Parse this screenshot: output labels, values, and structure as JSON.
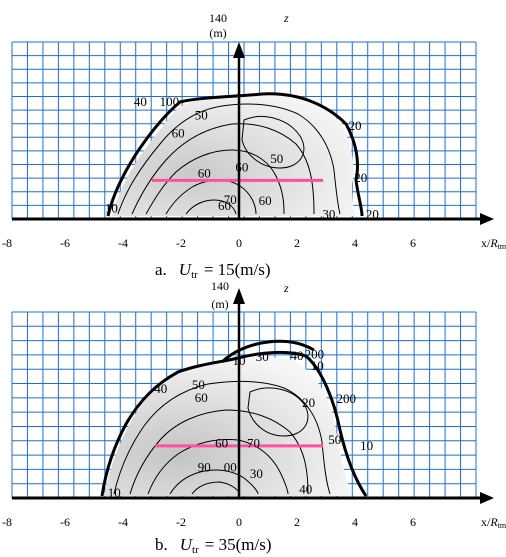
{
  "colors": {
    "grid": "#1e6fd9",
    "axis": "#000000",
    "contour": "#000000",
    "marker_line": "#ff4fa0",
    "shade_light": "#f4f4f4",
    "shade_dark": "#c9c9c9"
  },
  "chart_data": [
    {
      "type": "contour",
      "caption": {
        "prefix": "a.",
        "symbol": "U",
        "sub": "tr",
        "value": "= 15(m/s)"
      },
      "x_ticks": [
        "-8",
        "-6",
        "-4",
        "-2",
        "0",
        "2",
        "4",
        "6"
      ],
      "x_label": {
        "main": "x/",
        "italic": "R",
        "sub": "tmax"
      },
      "y_top_tick": "140",
      "y_unit": "(m)",
      "z_label": "z",
      "xlim": [
        -8,
        8
      ],
      "ylim": [
        0,
        140
      ],
      "grid": true,
      "contour_labels": [
        {
          "text": "40",
          "x": -3.4,
          "y": 96
        },
        {
          "text": "100",
          "x": -2.4,
          "y": 96
        },
        {
          "text": "20",
          "x": 4.0,
          "y": 76
        },
        {
          "text": "50",
          "x": -1.3,
          "y": 85
        },
        {
          "text": "60",
          "x": -2.1,
          "y": 70
        },
        {
          "text": "50",
          "x": 1.3,
          "y": 49
        },
        {
          "text": "60",
          "x": 0.1,
          "y": 42
        },
        {
          "text": "60",
          "x": -1.2,
          "y": 37
        },
        {
          "text": "20",
          "x": 4.2,
          "y": 33
        },
        {
          "text": "70",
          "x": -0.3,
          "y": 15
        },
        {
          "text": "60",
          "x": 0.9,
          "y": 14
        },
        {
          "text": "60",
          "x": -0.5,
          "y": 10
        },
        {
          "text": "10",
          "x": -4.4,
          "y": 8
        },
        {
          "text": "30",
          "x": 3.1,
          "y": 3
        },
        {
          "text": "20",
          "x": 4.6,
          "y": 3
        }
      ],
      "marker_line": {
        "x": [
          -3.0,
          2.9
        ],
        "y": 32
      }
    },
    {
      "type": "contour",
      "caption": {
        "prefix": "b.",
        "symbol": "U",
        "sub": "tr",
        "value": "= 35(m/s)"
      },
      "x_ticks": [
        "-8",
        "-6",
        "-4",
        "-2",
        "0",
        "2",
        "4",
        "6"
      ],
      "x_label": {
        "main": "x/",
        "italic": "R",
        "sub": "tmax"
      },
      "y_top_tick": "140",
      "y_unit": "(m)",
      "z_label": "z",
      "xlim": [
        -8,
        8
      ],
      "ylim": [
        0,
        140
      ],
      "grid": true,
      "contour_labels": [
        {
          "text": "10",
          "x": 0.0,
          "y": 107
        },
        {
          "text": "30",
          "x": 0.8,
          "y": 110
        },
        {
          "text": "40",
          "x": 2.0,
          "y": 111
        },
        {
          "text": "200",
          "x": 2.6,
          "y": 112
        },
        {
          "text": "10",
          "x": 2.7,
          "y": 103
        },
        {
          "text": "40",
          "x": -2.7,
          "y": 85
        },
        {
          "text": "50",
          "x": -1.4,
          "y": 88
        },
        {
          "text": "60",
          "x": -1.3,
          "y": 78
        },
        {
          "text": "20",
          "x": 2.4,
          "y": 74
        },
        {
          "text": "200",
          "x": 3.7,
          "y": 77
        },
        {
          "text": "50",
          "x": 3.3,
          "y": 45
        },
        {
          "text": "10",
          "x": 4.4,
          "y": 40
        },
        {
          "text": "60",
          "x": -0.6,
          "y": 42
        },
        {
          "text": "70",
          "x": 0.5,
          "y": 42
        },
        {
          "text": "90",
          "x": -1.2,
          "y": 23
        },
        {
          "text": "00",
          "x": -0.3,
          "y": 23
        },
        {
          "text": "30",
          "x": 0.6,
          "y": 18
        },
        {
          "text": "40",
          "x": 2.3,
          "y": 6
        },
        {
          "text": "10",
          "x": -4.3,
          "y": 3
        }
      ],
      "marker_line": {
        "x": [
          -2.9,
          2.9
        ],
        "y": 41
      }
    }
  ]
}
